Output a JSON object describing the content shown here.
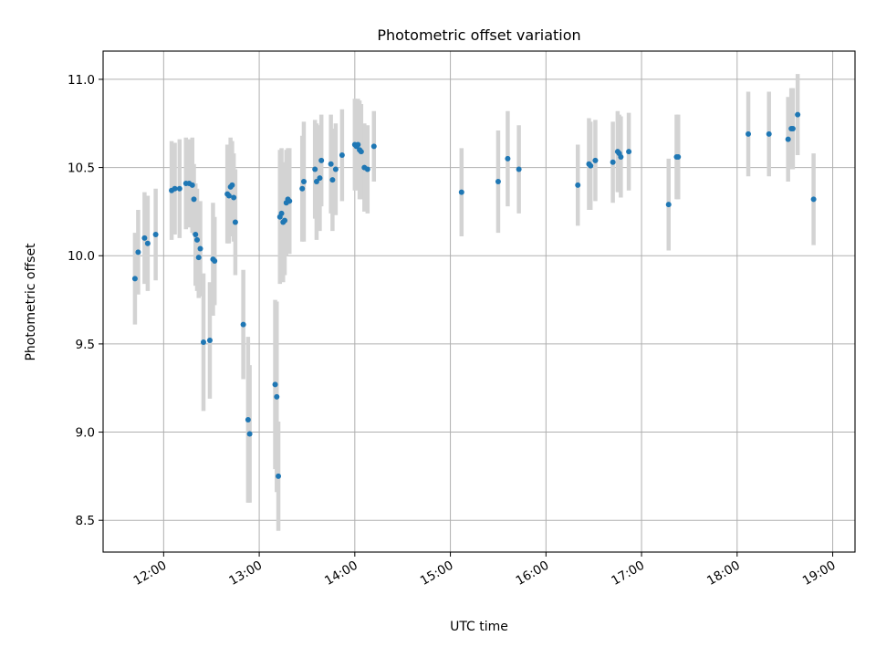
{
  "chart_data": {
    "type": "scatter",
    "title": "Photometric offset variation",
    "xlabel": "UTC time",
    "ylabel": "Photometric offset",
    "xlim": [
      "11:22",
      "19:14"
    ],
    "ylim": [
      8.32,
      11.16
    ],
    "grid": true,
    "x_ticks": [
      "12:00",
      "13:00",
      "14:00",
      "15:00",
      "16:00",
      "17:00",
      "18:00",
      "19:00"
    ],
    "y_ticks": [
      "8.5",
      "9.0",
      "9.5",
      "10.0",
      "10.5",
      "11.0"
    ],
    "colors": {
      "points": "#1f77b4",
      "error_bars": "#d3d3d3",
      "grid": "#b0b0b0"
    },
    "series": [
      {
        "x": [
          "11:42",
          "11:44",
          "11:48",
          "11:50",
          "11:55",
          "12:05",
          "12:07",
          "12:10",
          "12:14",
          "12:16",
          "12:18",
          "12:19",
          "12:20",
          "12:21",
          "12:22",
          "12:23",
          "12:25",
          "12:29",
          "12:31",
          "12:32",
          "12:40",
          "12:41",
          "12:42",
          "12:43",
          "12:44",
          "12:45",
          "12:50",
          "12:53",
          "12:54",
          "13:10",
          "13:11",
          "13:12",
          "13:13",
          "13:14",
          "13:15",
          "13:16",
          "13:17",
          "13:18",
          "13:19",
          "13:27",
          "13:28",
          "13:35",
          "13:36",
          "13:38",
          "13:39",
          "13:45",
          "13:46",
          "13:48",
          "13:52",
          "14:00",
          "14:01",
          "14:02",
          "14:03",
          "14:04",
          "14:06",
          "14:08",
          "14:12",
          "15:07",
          "15:30",
          "15:36",
          "15:43",
          "16:20",
          "16:27",
          "16:28",
          "16:31",
          "16:42",
          "16:45",
          "16:46",
          "16:47",
          "16:52",
          "17:17",
          "17:22",
          "17:23",
          "18:07",
          "18:20",
          "18:32",
          "18:34",
          "18:35",
          "18:38",
          "18:48"
        ],
        "y": [
          9.87,
          10.02,
          10.1,
          10.07,
          10.12,
          10.37,
          10.38,
          10.38,
          10.41,
          10.41,
          10.4,
          10.32,
          10.12,
          10.09,
          9.99,
          10.04,
          9.51,
          9.52,
          9.98,
          9.97,
          10.35,
          10.34,
          10.39,
          10.4,
          10.33,
          10.19,
          9.61,
          9.07,
          8.99,
          9.27,
          9.2,
          8.75,
          10.22,
          10.24,
          10.19,
          10.2,
          10.3,
          10.32,
          10.31,
          10.38,
          10.42,
          10.49,
          10.42,
          10.44,
          10.54,
          10.52,
          10.43,
          10.49,
          10.57,
          10.63,
          10.62,
          10.63,
          10.6,
          10.59,
          10.5,
          10.49,
          10.62,
          10.36,
          10.42,
          10.55,
          10.49,
          10.4,
          10.52,
          10.51,
          10.54,
          10.53,
          10.59,
          10.58,
          10.56,
          10.59,
          10.29,
          10.56,
          10.56,
          10.69,
          10.69,
          10.66,
          10.72,
          10.72,
          10.8,
          10.32
        ],
        "yerr": [
          0.26,
          0.24,
          0.26,
          0.27,
          0.26,
          0.28,
          0.26,
          0.28,
          0.26,
          0.25,
          0.27,
          0.2,
          0.29,
          0.29,
          0.23,
          0.27,
          0.39,
          0.33,
          0.32,
          0.25,
          0.28,
          0.27,
          0.28,
          0.25,
          0.25,
          0.3,
          0.31,
          0.47,
          0.39,
          0.48,
          0.54,
          0.31,
          0.38,
          0.37,
          0.34,
          0.31,
          0.3,
          0.29,
          0.3,
          0.3,
          0.34,
          0.28,
          0.33,
          0.3,
          0.26,
          0.28,
          0.29,
          0.26,
          0.26,
          0.26,
          0.24,
          0.26,
          0.28,
          0.27,
          0.25,
          0.25,
          0.2,
          0.25,
          0.29,
          0.27,
          0.25,
          0.23,
          0.26,
          0.25,
          0.23,
          0.23,
          0.23,
          0.22,
          0.23,
          0.22,
          0.26,
          0.24,
          0.24,
          0.24,
          0.24,
          0.24,
          0.23,
          0.23,
          0.23,
          0.26
        ]
      }
    ]
  }
}
